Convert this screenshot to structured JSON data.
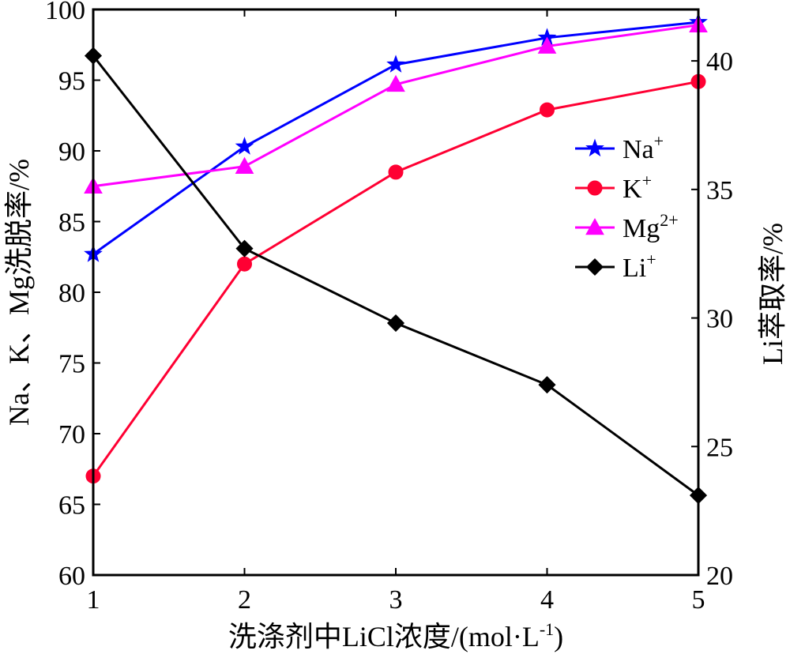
{
  "chart_data": {
    "type": "line",
    "xlabel": "洗涤剂中LiCl浓度/(mol·L",
    "xlabel_sup": "-1",
    "xlabel_close": ")",
    "ylabel_left": "Na、K、Mg洗脱率/%",
    "ylabel_right": "Li萃取率/%",
    "x": [
      1,
      2,
      3,
      4,
      5
    ],
    "xlim": [
      1,
      5
    ],
    "ylim_left": [
      60,
      100
    ],
    "ylim_right": [
      20,
      42
    ],
    "xticks": [
      "1",
      "2",
      "3",
      "4",
      "5"
    ],
    "yticks_left": [
      "60",
      "65",
      "70",
      "75",
      "80",
      "85",
      "90",
      "95",
      "100"
    ],
    "yticks_right": [
      "20",
      "25",
      "30",
      "35",
      "40"
    ],
    "legend_position": "right",
    "grid": false,
    "series": [
      {
        "name": "Na",
        "sup": "+",
        "axis": "left",
        "color": "#0000ff",
        "marker": "star",
        "values": [
          82.7,
          90.3,
          96.1,
          98.0,
          99.1
        ]
      },
      {
        "name": "K",
        "sup": "+",
        "axis": "left",
        "color": "#ff0033",
        "marker": "circle",
        "values": [
          67.0,
          82.0,
          88.5,
          92.9,
          94.9
        ]
      },
      {
        "name": "Mg",
        "sup": "2+",
        "axis": "left",
        "color": "#ff00ff",
        "marker": "triangle",
        "values": [
          87.5,
          88.9,
          94.7,
          97.4,
          98.9
        ]
      },
      {
        "name": "Li",
        "sup": "+",
        "axis": "right",
        "color": "#000000",
        "marker": "diamond",
        "values": [
          40.2,
          32.7,
          29.8,
          27.4,
          23.1
        ]
      }
    ]
  }
}
